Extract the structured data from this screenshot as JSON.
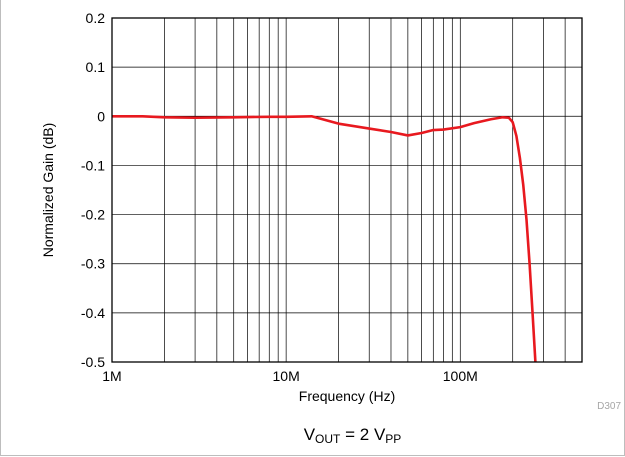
{
  "chart_data": {
    "type": "line",
    "title": "",
    "xlabel": "Frequency (Hz)",
    "ylabel": "Normalized Gain (dB)",
    "x_scale": "log",
    "xlim": [
      1000000,
      500000000
    ],
    "ylim": [
      -0.5,
      0.2
    ],
    "grid": true,
    "x_ticks": [
      {
        "value": 1000000,
        "label": "1M"
      },
      {
        "value": 10000000,
        "label": "10M"
      },
      {
        "value": 100000000,
        "label": "100M"
      }
    ],
    "y_ticks": [
      {
        "value": 0.2,
        "label": "0.2"
      },
      {
        "value": 0.1,
        "label": "0.1"
      },
      {
        "value": 0,
        "label": "0"
      },
      {
        "value": -0.1,
        "label": "-0.1"
      },
      {
        "value": -0.2,
        "label": "-0.2"
      },
      {
        "value": -0.3,
        "label": "-0.3"
      },
      {
        "value": -0.4,
        "label": "-0.4"
      },
      {
        "value": -0.5,
        "label": "-0.5"
      }
    ],
    "series": [
      {
        "color": "#e8191f",
        "x": [
          1000000,
          1500000,
          2000000,
          3000000,
          5000000,
          8000000,
          10000000,
          14000000,
          20000000,
          30000000,
          40000000,
          50000000,
          60000000,
          70000000,
          80000000,
          100000000,
          120000000,
          150000000,
          175000000,
          190000000,
          200000000,
          210000000,
          220000000,
          230000000,
          240000000,
          250000000,
          260000000,
          270000000
        ],
        "y": [
          0,
          0,
          -0.002,
          -0.003,
          -0.002,
          -0.001,
          -0.001,
          0,
          -0.015,
          -0.025,
          -0.032,
          -0.039,
          -0.034,
          -0.028,
          -0.027,
          -0.022,
          -0.014,
          -0.006,
          -0.002,
          -0.003,
          -0.012,
          -0.04,
          -0.085,
          -0.14,
          -0.21,
          -0.3,
          -0.4,
          -0.5
        ]
      }
    ]
  },
  "annotations": {
    "code": "D307",
    "cond_main": "V",
    "cond_sub1": "OUT",
    "cond_mid": " = 2 V",
    "cond_sub2": "PP"
  }
}
